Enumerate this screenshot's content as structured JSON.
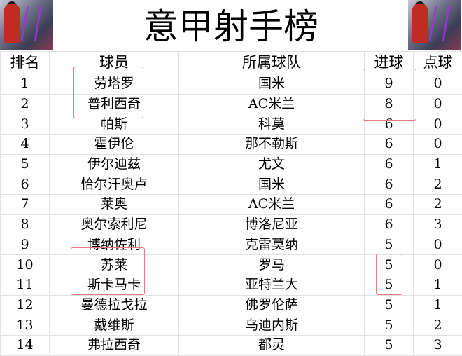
{
  "title": "意甲射手榜",
  "headers": {
    "rank": "排名",
    "player": "球员",
    "team": "所属球队",
    "goals": "进球",
    "penalties": "点球"
  },
  "highlight_color": "#e57b7f",
  "rows": [
    {
      "rank": "1",
      "player": "劳塔罗",
      "team": "国米",
      "goals": "9",
      "penalties": "0"
    },
    {
      "rank": "2",
      "player": "普利西奇",
      "team": "AC米兰",
      "goals": "8",
      "penalties": "0"
    },
    {
      "rank": "3",
      "player": "帕斯",
      "team": "科莫",
      "goals": "6",
      "penalties": "0"
    },
    {
      "rank": "4",
      "player": "霍伊伦",
      "team": "那不勒斯",
      "goals": "6",
      "penalties": "0"
    },
    {
      "rank": "5",
      "player": "伊尔迪兹",
      "team": "尤文",
      "goals": "6",
      "penalties": "1"
    },
    {
      "rank": "6",
      "player": "恰尔汗奥卢",
      "team": "国米",
      "goals": "6",
      "penalties": "2"
    },
    {
      "rank": "7",
      "player": "莱奥",
      "team": "AC米兰",
      "goals": "6",
      "penalties": "2"
    },
    {
      "rank": "8",
      "player": "奥尔索利尼",
      "team": "博洛尼亚",
      "goals": "6",
      "penalties": "3"
    },
    {
      "rank": "9",
      "player": "博纳佐利",
      "team": "克雷莫纳",
      "goals": "5",
      "penalties": "0"
    },
    {
      "rank": "10",
      "player": "苏莱",
      "team": "罗马",
      "goals": "5",
      "penalties": "0"
    },
    {
      "rank": "11",
      "player": "斯卡马卡",
      "team": "亚特兰大",
      "goals": "5",
      "penalties": "1"
    },
    {
      "rank": "12",
      "player": "曼德拉戈拉",
      "team": "佛罗伦萨",
      "goals": "5",
      "penalties": "1"
    },
    {
      "rank": "13",
      "player": "戴维斯",
      "team": "乌迪内斯",
      "goals": "5",
      "penalties": "2"
    },
    {
      "rank": "14",
      "player": "弗拉西奇",
      "team": "都灵",
      "goals": "5",
      "penalties": "3"
    }
  ]
}
